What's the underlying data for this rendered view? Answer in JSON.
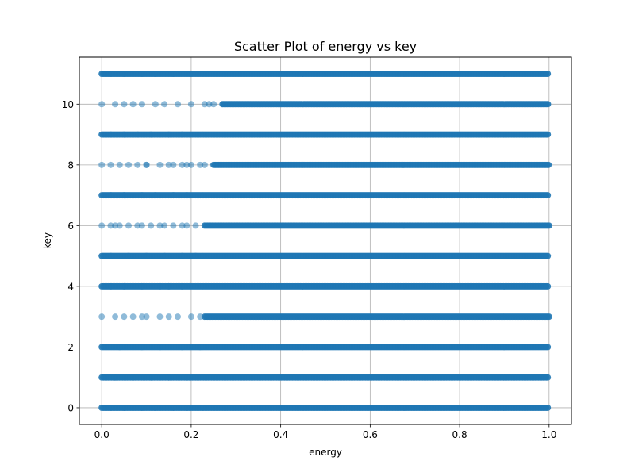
{
  "chart_data": {
    "type": "scatter",
    "title": "Scatter Plot of energy vs key",
    "xlabel": "energy",
    "ylabel": "key",
    "xlim": [
      -0.05,
      1.05
    ],
    "ylim": [
      -0.55,
      11.55
    ],
    "xticks": [
      0.0,
      0.2,
      0.4,
      0.6,
      0.8,
      1.0
    ],
    "xtick_labels": [
      "0.0",
      "0.2",
      "0.4",
      "0.6",
      "0.8",
      "1.0"
    ],
    "yticks": [
      0,
      2,
      4,
      6,
      8,
      10
    ],
    "ytick_labels": [
      "0",
      "2",
      "4",
      "6",
      "8",
      "10"
    ],
    "grid": true,
    "marker_color": "#1f77b4",
    "marker_alpha": 0.5,
    "series": [
      {
        "key_values": [
          0,
          1,
          2,
          3,
          4,
          5,
          6,
          7,
          8,
          9,
          10,
          11
        ],
        "energy_range": [
          0.0,
          1.0
        ],
        "dense_from": [
          0.0,
          0.0,
          0.0,
          0.23,
          0.0,
          0.0,
          0.23,
          0.0,
          0.25,
          0.0,
          0.27,
          0.0
        ],
        "sparse_energy": [
          [
            0.02,
            0.05,
            0.09,
            0.12,
            0.16,
            0.19
          ],
          [
            0.03,
            0.07,
            0.11,
            0.15,
            0.19
          ],
          [
            0.04,
            0.09,
            0.13,
            0.18,
            0.22
          ],
          [
            0.0,
            0.03,
            0.05,
            0.07,
            0.09,
            0.1,
            0.13,
            0.15,
            0.17,
            0.2,
            0.22
          ],
          [
            0.02,
            0.05,
            0.09,
            0.13,
            0.15,
            0.18
          ],
          [
            0.02,
            0.06,
            0.1,
            0.14,
            0.18,
            0.21
          ],
          [
            0.0,
            0.02,
            0.03,
            0.04,
            0.06,
            0.08,
            0.09,
            0.11,
            0.13,
            0.14,
            0.16,
            0.18,
            0.19,
            0.21
          ],
          [
            0.02,
            0.05,
            0.09,
            0.12,
            0.16,
            0.19
          ],
          [
            0.0,
            0.02,
            0.04,
            0.06,
            0.08,
            0.1,
            0.1,
            0.13,
            0.15,
            0.16,
            0.18,
            0.19,
            0.2,
            0.22,
            0.23
          ],
          [
            0.02,
            0.05,
            0.08,
            0.11,
            0.15,
            0.18
          ],
          [
            0.0,
            0.03,
            0.05,
            0.07,
            0.09,
            0.12,
            0.14,
            0.17,
            0.2,
            0.23,
            0.24,
            0.25
          ],
          [
            0.02,
            0.05,
            0.09,
            0.12,
            0.16,
            0.2
          ]
        ]
      }
    ]
  }
}
